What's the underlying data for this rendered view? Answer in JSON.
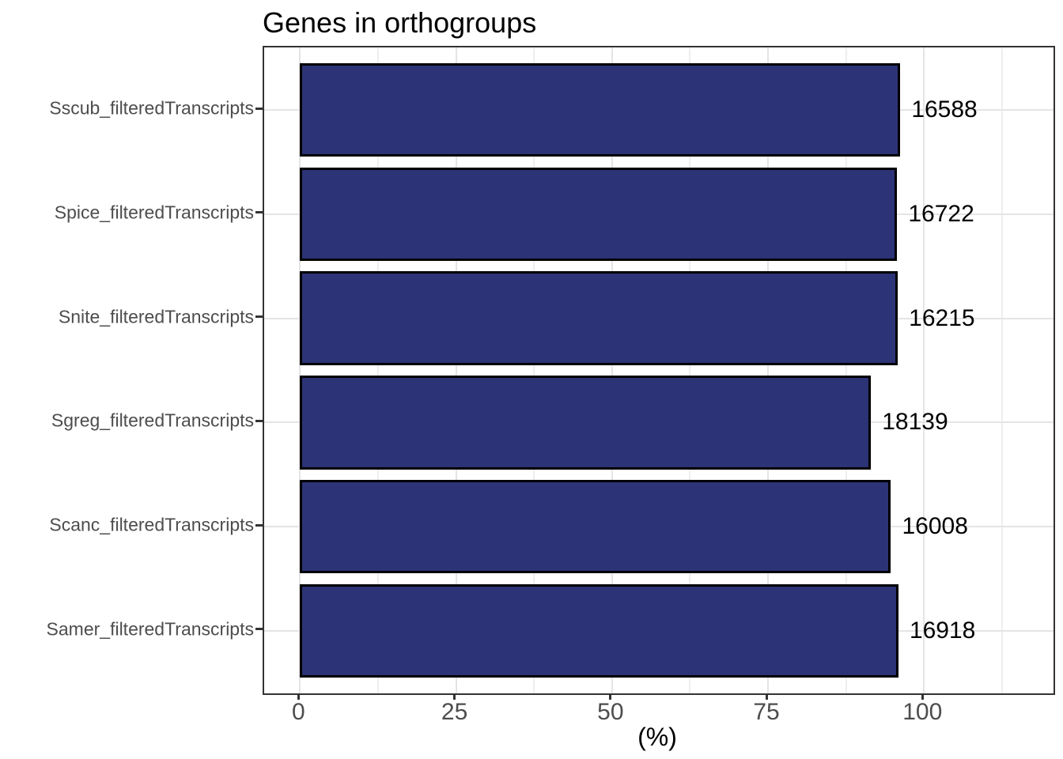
{
  "chart_data": {
    "type": "bar",
    "orientation": "horizontal",
    "title": "Genes in orthogroups",
    "xlabel": "(%)",
    "ylabel": "",
    "bars": [
      {
        "category": "Sscub_filteredTranscripts",
        "percent": 96.2,
        "label": "16588"
      },
      {
        "category": "Spice_filteredTranscripts",
        "percent": 95.7,
        "label": "16722"
      },
      {
        "category": "Snite_filteredTranscripts",
        "percent": 95.8,
        "label": "16215"
      },
      {
        "category": "Sgreg_filteredTranscripts",
        "percent": 91.5,
        "label": "18139"
      },
      {
        "category": "Scanc_filteredTranscripts",
        "percent": 94.7,
        "label": "16008"
      },
      {
        "category": "Samer_filteredTranscripts",
        "percent": 95.9,
        "label": "16918"
      }
    ],
    "x_ticks": [
      {
        "value": 0,
        "label": "0"
      },
      {
        "value": 25,
        "label": "25"
      },
      {
        "value": 50,
        "label": "50"
      },
      {
        "value": 75,
        "label": "75"
      },
      {
        "value": 100,
        "label": "100"
      }
    ],
    "x_minor_ticks": [
      12.5,
      37.5,
      62.5,
      87.5,
      112.5
    ],
    "xlim": [
      -5.75,
      120.75
    ],
    "ylim": [
      0.4,
      6.6
    ],
    "bar_band_width": 0.9,
    "grid": true,
    "legend": false,
    "colors": {
      "bar_fill": "#2c3376",
      "bar_border": "#000000",
      "panel_border": "#333333",
      "grid_major": "#e4e4e4",
      "grid_minor": "#eeeeee",
      "axis_text": "#4d4d4d",
      "tick_mark": "#333333",
      "value_label_text": "#000000",
      "title_text": "#000000",
      "background": "#ffffff"
    }
  }
}
